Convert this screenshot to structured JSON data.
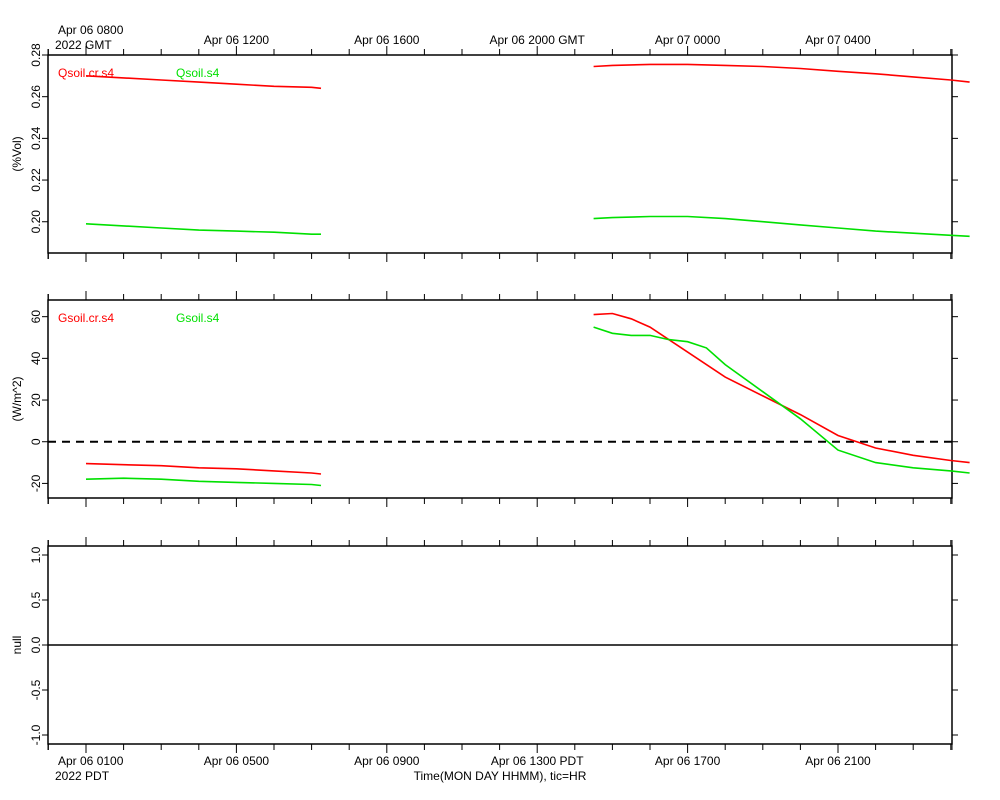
{
  "chart_data": [
    {
      "type": "line",
      "panel": "top",
      "ylabel": "(%Vol)",
      "ylim": [
        0.185,
        0.28
      ],
      "yticks": [
        0.2,
        0.22,
        0.24,
        0.26,
        0.28
      ],
      "ytick_labels": [
        "0.20",
        "0.22",
        "0.24",
        "0.26",
        "0.28"
      ],
      "xlim_hours_pdt": [
        0,
        23.5
      ],
      "series": [
        {
          "name": "Qsoil.cr.s4",
          "color": "#ff0000",
          "segments": [
            {
              "x": [
                0,
                1,
                2,
                3,
                4,
                5,
                6,
                6.25
              ],
              "y": [
                0.27,
                0.269,
                0.268,
                0.267,
                0.266,
                0.265,
                0.2645,
                0.264
              ]
            },
            {
              "x": [
                13.5,
                14,
                15,
                16,
                17,
                18,
                19,
                20,
                21,
                22,
                23,
                23.5
              ],
              "y": [
                0.2745,
                0.275,
                0.2755,
                0.2755,
                0.275,
                0.2745,
                0.2735,
                0.2722,
                0.271,
                0.2695,
                0.268,
                0.267
              ]
            }
          ]
        },
        {
          "name": "Qsoil.s4",
          "color": "#00e000",
          "segments": [
            {
              "x": [
                0,
                1,
                2,
                3,
                4,
                5,
                6,
                6.25
              ],
              "y": [
                0.199,
                0.198,
                0.197,
                0.196,
                0.1955,
                0.195,
                0.194,
                0.194
              ]
            },
            {
              "x": [
                13.5,
                14,
                15,
                16,
                17,
                18,
                19,
                20,
                21,
                22,
                23,
                23.5
              ],
              "y": [
                0.2015,
                0.202,
                0.2025,
                0.2025,
                0.2015,
                0.2,
                0.1985,
                0.197,
                0.1955,
                0.1945,
                0.1935,
                0.193
              ]
            }
          ]
        }
      ]
    },
    {
      "type": "line",
      "panel": "middle",
      "ylabel": "(W/m^2)",
      "ylim": [
        -27,
        68
      ],
      "yticks": [
        -20,
        0,
        20,
        40,
        60
      ],
      "ytick_labels": [
        "-20",
        "0",
        "20",
        "40",
        "60"
      ],
      "zero_line": "dashed",
      "xlim_hours_pdt": [
        0,
        23.5
      ],
      "series": [
        {
          "name": "Gsoil.cr.s4",
          "color": "#ff0000",
          "segments": [
            {
              "x": [
                0,
                1,
                2,
                3,
                4,
                5,
                6,
                6.25
              ],
              "y": [
                -10.5,
                -11,
                -11.5,
                -12.5,
                -13,
                -14,
                -15,
                -15.5
              ]
            },
            {
              "x": [
                13.5,
                14,
                14.5,
                15,
                16,
                17,
                18,
                19,
                20,
                21,
                22,
                23,
                23.5
              ],
              "y": [
                61,
                61.5,
                59,
                55,
                43,
                31,
                22,
                13,
                3,
                -3,
                -6.5,
                -9,
                -10
              ]
            }
          ]
        },
        {
          "name": "Gsoil.s4",
          "color": "#00e000",
          "segments": [
            {
              "x": [
                0,
                1,
                2,
                3,
                4,
                5,
                6,
                6.25
              ],
              "y": [
                -18,
                -17.5,
                -18,
                -19,
                -19.5,
                -20,
                -20.5,
                -21
              ]
            },
            {
              "x": [
                13.5,
                14,
                14.5,
                15,
                15.5,
                16,
                16.5,
                17,
                18,
                19,
                20,
                21,
                22,
                23,
                23.5
              ],
              "y": [
                55,
                52,
                51,
                51,
                49,
                48,
                45,
                37,
                24,
                11,
                -4,
                -10,
                -12.5,
                -14,
                -15
              ]
            }
          ]
        }
      ]
    },
    {
      "type": "line",
      "panel": "bottom",
      "ylabel": "null",
      "ylim": [
        -1.1,
        1.1
      ],
      "yticks": [
        -1.0,
        -0.5,
        0.0,
        0.5,
        1.0
      ],
      "ytick_labels": [
        "-1.0",
        "-0.5",
        "0.0",
        "0.5",
        "1.0"
      ],
      "zero_line": "solid",
      "series": []
    }
  ],
  "axes": {
    "top_ticks": [
      {
        "hour": 0,
        "line1": "Apr 06 0800",
        "line2": "2022 GMT"
      },
      {
        "hour": 4,
        "line1": "Apr 06 1200"
      },
      {
        "hour": 8,
        "line1": "Apr 06 1600"
      },
      {
        "hour": 12,
        "line1": "Apr 06 2000 GMT"
      },
      {
        "hour": 16,
        "line1": "Apr 07 0000"
      },
      {
        "hour": 20,
        "line1": "Apr 07 0400"
      }
    ],
    "bottom_ticks": [
      {
        "hour": 0,
        "line1": "Apr 06 0100",
        "line2": "2022 PDT"
      },
      {
        "hour": 4,
        "line1": "Apr 06 0500"
      },
      {
        "hour": 8,
        "line1": "Apr 06 0900"
      },
      {
        "hour": 12,
        "line1": "Apr 06 1300 PDT"
      },
      {
        "hour": 16,
        "line1": "Apr 06 1700"
      },
      {
        "hour": 20,
        "line1": "Apr 06 2100"
      }
    ],
    "xlabel": "Time(MON DAY HHMM), tic=HR"
  }
}
